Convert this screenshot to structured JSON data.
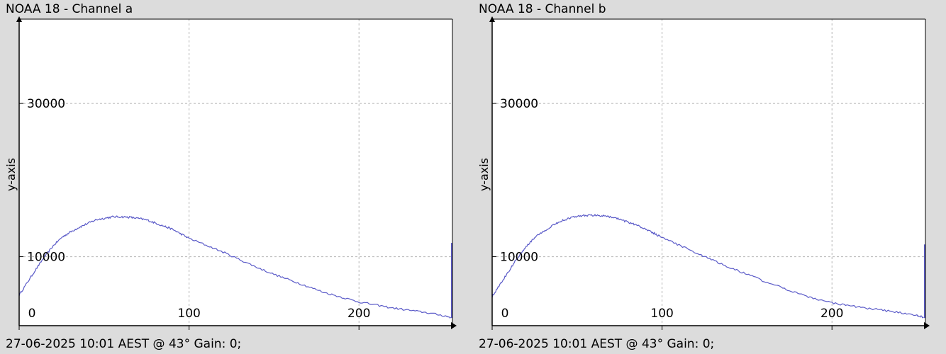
{
  "chart_data": [
    {
      "type": "line",
      "title": "NOAA 18 - Channel a",
      "footer": "27-06-2025 10:01 AEST @ 43° Gain: 0;",
      "ylabel": "y-axis",
      "xlabel": "",
      "xlim": [
        0,
        255
      ],
      "ylim": [
        1000,
        41000
      ],
      "grid": true,
      "x_ticks": [
        0,
        100,
        200
      ],
      "y_ticks": [
        10000,
        30000
      ],
      "line_color": "#5a5ac8",
      "series": [
        {
          "x": [
            0,
            5,
            10,
            15,
            20,
            25,
            30,
            35,
            40,
            45,
            50,
            55,
            60,
            65,
            70,
            75,
            80,
            85,
            90,
            95,
            100,
            110,
            120,
            130,
            140,
            150,
            160,
            170,
            180,
            190,
            200,
            210,
            220,
            230,
            240,
            250,
            254
          ],
          "y": [
            5000,
            6700,
            8400,
            10000,
            11400,
            12500,
            13200,
            13800,
            14300,
            14800,
            15000,
            15200,
            15200,
            15150,
            15000,
            14800,
            14400,
            14000,
            13600,
            13000,
            12400,
            11500,
            10600,
            9600,
            8600,
            7700,
            6900,
            6100,
            5300,
            4700,
            4100,
            3700,
            3300,
            3000,
            2700,
            2300,
            2100
          ]
        }
      ],
      "end_spike": [
        2000,
        11800
      ]
    },
    {
      "type": "line",
      "title": "NOAA 18 - Channel b",
      "footer": "27-06-2025 10:01 AEST @ 43° Gain: 0;",
      "ylabel": "y-axis",
      "xlabel": "",
      "xlim": [
        0,
        255
      ],
      "ylim": [
        1000,
        41000
      ],
      "grid": true,
      "x_ticks": [
        0,
        100,
        200
      ],
      "y_ticks": [
        10000,
        30000
      ],
      "line_color": "#5a5ac8",
      "series": [
        {
          "x": [
            0,
            5,
            10,
            15,
            20,
            25,
            30,
            35,
            40,
            45,
            50,
            55,
            60,
            65,
            70,
            75,
            80,
            85,
            90,
            95,
            100,
            110,
            120,
            130,
            140,
            150,
            160,
            170,
            180,
            190,
            200,
            210,
            220,
            230,
            240,
            250,
            254
          ],
          "y": [
            4800,
            6500,
            8200,
            9900,
            11300,
            12500,
            13300,
            14000,
            14600,
            15000,
            15300,
            15400,
            15400,
            15350,
            15200,
            14900,
            14500,
            14100,
            13600,
            13100,
            12500,
            11500,
            10500,
            9500,
            8600,
            7700,
            6800,
            6000,
            5200,
            4500,
            4000,
            3600,
            3300,
            3000,
            2700,
            2300,
            2100
          ]
        }
      ],
      "end_spike": [
        2000,
        11600
      ]
    }
  ]
}
